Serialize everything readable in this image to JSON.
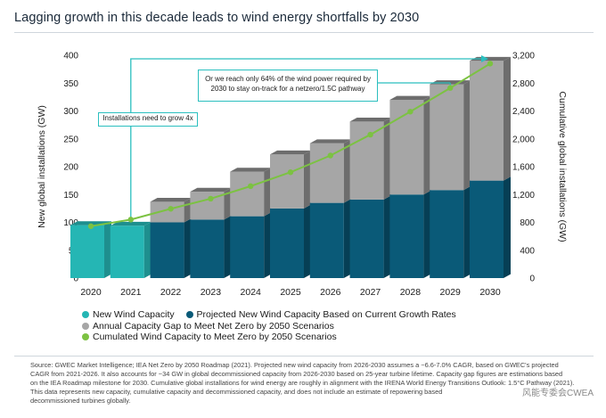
{
  "title": "Lagging growth in this decade leads to wind energy shortfalls by 2030",
  "colors": {
    "new": "#25b6b4",
    "new_dark": "#1e8f8e",
    "projected": "#0a5a78",
    "projected_dark": "#063f55",
    "gap": "#a6a6a6",
    "gap_dark": "#6d6d6d",
    "line": "#7cc242",
    "annotation": "#2bbfbf"
  },
  "chart_data": {
    "type": "bar",
    "title": "Lagging growth in this decade leads to wind energy shortfalls by 2030",
    "ylabel": "New global installations (GW)",
    "y2label": "Cumulative global installations (GW)",
    "ylim": [
      0,
      400
    ],
    "y_ticks": [
      "0",
      "50",
      "100",
      "150",
      "200",
      "250",
      "300",
      "350",
      "400"
    ],
    "y2lim": [
      0,
      3200
    ],
    "y2_ticks": [
      "0",
      "400",
      "800",
      "1,200",
      "1,600",
      "2,000",
      "2,400",
      "2,800",
      "3,200"
    ],
    "categories": [
      "2020",
      "2021",
      "2022",
      "2023",
      "2024",
      "2025",
      "2026",
      "2027",
      "2028",
      "2029",
      "2030"
    ],
    "series": [
      {
        "name": "New Wind Capacity",
        "stack": "bars",
        "values": [
          95,
          94,
          0,
          0,
          0,
          0,
          0,
          0,
          0,
          0,
          0
        ]
      },
      {
        "name": "Projected New Wind Capacity Based on Current Growth Rates",
        "stack": "bars",
        "values": [
          0,
          0,
          100,
          105,
          111,
          125,
          135,
          141,
          150,
          158,
          175
        ]
      },
      {
        "name": "Annual Capacity Gap to Meet Net Zero by 2050 Scenarios",
        "stack": "bars",
        "values": [
          0,
          0,
          37,
          50,
          80,
          97,
          107,
          140,
          170,
          190,
          215
        ]
      },
      {
        "name": "Cumulated Wind Capacity to Meet Zero by 2050 Scenarios",
        "type": "line",
        "axis": "right",
        "values": [
          745,
          840,
          995,
          1140,
          1320,
          1520,
          1760,
          2060,
          2390,
          2730,
          3080
        ]
      }
    ]
  },
  "annotations": {
    "grow": "Installations need to grow 4x",
    "reach_line1": "Or we reach only 64% of the wind power required by",
    "reach_line2": "2030 to stay on-track for a netzero/1.5C pathway"
  },
  "legend": [
    {
      "label": "New Wind Capacity"
    },
    {
      "label": "Projected New Wind Capacity Based on Current Growth Rates"
    },
    {
      "label": "Annual Capacity Gap to Meet Net Zero by 2050 Scenarios"
    },
    {
      "label": "Cumulated Wind Capacity to Meet Zero by 2050 Scenarios"
    }
  ],
  "source": {
    "line1": "Source: GWEC Market Intelligence; IEA Net Zero by 2050 Roadmap (2021). Projected new wind capacity from 2026-2030 assumes a ~6.6-7.0% CAGR, based on GWEC's projected",
    "line2": "CAGR from 2021-2026. It also accounts for ~34 GW in global decommissioned capacity from 2026-2030 based on 25-year turbine lifetime. Capacity gap figures are estimations based",
    "line3": "on the IEA Roadmap milestone for 2030. Cumulative global installations for wind energy are roughly in alignment with the IRENA World Energy Transitions Outlook: 1.5°C Pathway (2021).",
    "line4": "This data represents new capacity, cumulative capacity and decommissioned capacity, and does not include an estimate of repowering based",
    "line5": "decommissioned turbines globally."
  },
  "watermark": "风能专委会CWEA"
}
